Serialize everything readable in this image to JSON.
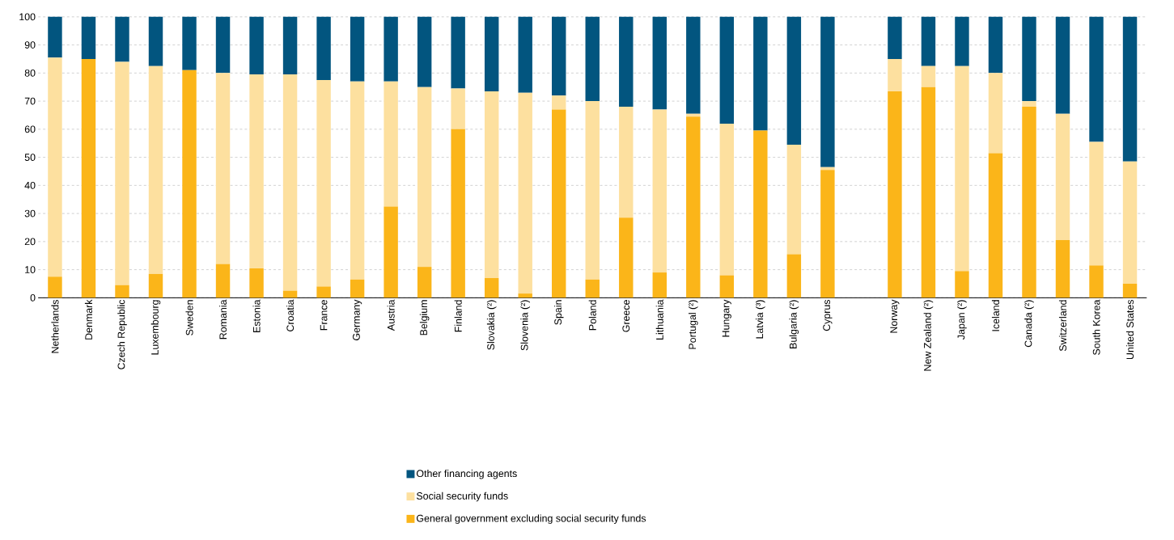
{
  "chart_data": {
    "type": "bar",
    "stacked": true,
    "categories": [
      "Netherlands",
      "Denmark",
      "Czech Republic",
      "Luxembourg",
      "Sweden",
      "Romania",
      "Estonia",
      "Croatia",
      "France",
      "Germany",
      "Austria",
      "Belgium",
      "Finland",
      "Slovakia (²)",
      "Slovenia (²)",
      "Spain",
      "Poland",
      "Greece",
      "Lithuania",
      "Portugal (²)",
      "Hungary",
      "Latvia (³)",
      "Bulgaria (²)",
      "Cyprus",
      null,
      "Norway",
      "New Zealand (²)",
      "Japan (²)",
      "Iceland",
      "Canada (²)",
      "Switzerland",
      "South Korea",
      "United States"
    ],
    "series": [
      {
        "name": "General government excluding social security funds",
        "color": "#fbb519",
        "values": [
          7.5,
          85,
          4.5,
          8.5,
          81,
          12,
          10.5,
          2.5,
          4,
          6.5,
          32.5,
          11,
          60,
          7,
          1.5,
          67,
          6.5,
          28.5,
          9,
          64.5,
          8,
          59.5,
          15.5,
          45.5,
          null,
          73.5,
          75,
          9.5,
          51.5,
          68,
          20.5,
          11.5,
          5
        ]
      },
      {
        "name": "Social security funds",
        "color": "#fde09f",
        "values": [
          78,
          0,
          79.5,
          74,
          0,
          68,
          69,
          77,
          73.5,
          70.5,
          44.5,
          64,
          14.5,
          66.5,
          71.5,
          5,
          63.5,
          39.5,
          58,
          1,
          54,
          0,
          39,
          1,
          null,
          11.5,
          7.5,
          73,
          28.5,
          2,
          45,
          44,
          43.5
        ]
      },
      {
        "name": "Other financing agents",
        "color": "#02557f",
        "values": [
          14.5,
          15,
          16,
          17.5,
          19,
          20,
          20.5,
          20.5,
          22.5,
          23,
          23,
          25,
          25.5,
          26.5,
          27,
          28,
          30,
          32,
          33,
          34.5,
          38,
          40.5,
          45.5,
          53.5,
          null,
          15,
          17.5,
          17.5,
          20,
          30,
          34.5,
          44.5,
          51.5
        ]
      }
    ],
    "ylim": [
      0,
      100
    ],
    "yticks": [
      0,
      10,
      20,
      30,
      40,
      50,
      60,
      70,
      80,
      90,
      100
    ],
    "grid": "y",
    "legend": "bottom"
  }
}
